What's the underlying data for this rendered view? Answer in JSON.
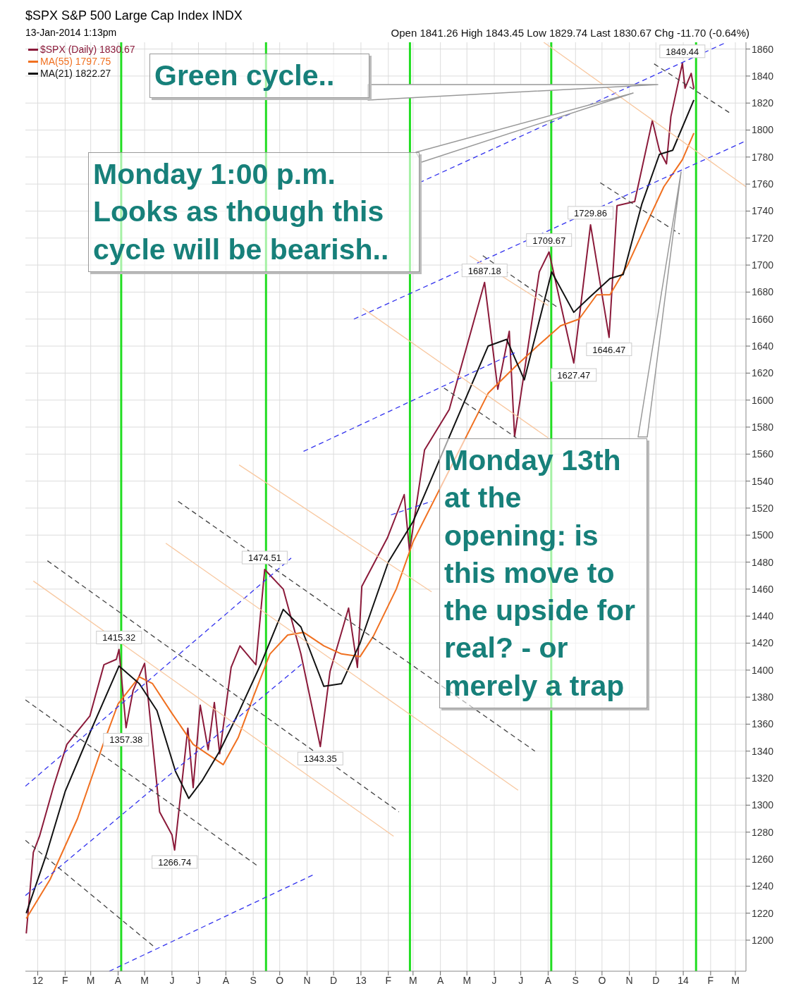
{
  "chart_data": {
    "type": "line",
    "title": "$SPX S&P 500 Large Cap Index INDX",
    "subtitle": "13-Jan-2014 1:13pm",
    "annotations": [
      "Open 1841.26 High 1843.45 Low 1829.74 Last 1830.67 Chg -11.70 (-0.64%)",
      "Green cycle..",
      "Monday 1:00 p.m. Looks as though this cycle will be bearish..",
      "Monday 13th at the opening: is this move to the upside for real? - or merely a trap",
      {
        "text": "1415.32",
        "x": "2012-04-02",
        "y": 1415.32
      },
      {
        "text": "1357.38",
        "x": "2012-04-10",
        "y": 1357.38
      },
      {
        "text": "1266.74",
        "x": "2012-06-04",
        "y": 1266.74
      },
      {
        "text": "1474.51",
        "x": "2012-09-14",
        "y": 1474.51
      },
      {
        "text": "1343.35",
        "x": "2012-11-16",
        "y": 1343.35
      },
      {
        "text": "1687.18",
        "x": "2013-05-21",
        "y": 1687.18
      },
      {
        "text": "1709.67",
        "x": "2013-08-02",
        "y": 1709.67
      },
      {
        "text": "1627.47",
        "x": "2013-08-30",
        "y": 1627.47
      },
      {
        "text": "1729.86",
        "x": "2013-09-18",
        "y": 1729.86
      },
      {
        "text": "1646.47",
        "x": "2013-10-09",
        "y": 1646.47
      },
      {
        "text": "1849.44",
        "x": "2013-12-31",
        "y": 1849.44
      }
    ],
    "xlim": [
      "2011-12-18",
      "2014-03-13"
    ],
    "xticks": [
      {
        "value": "2012-01-01",
        "label": "12"
      },
      {
        "value": "2012-02-01",
        "label": "F"
      },
      {
        "value": "2012-03-01",
        "label": "M"
      },
      {
        "value": "2012-04-01",
        "label": "A"
      },
      {
        "value": "2012-05-01",
        "label": "M"
      },
      {
        "value": "2012-06-01",
        "label": "J"
      },
      {
        "value": "2012-07-01",
        "label": "J"
      },
      {
        "value": "2012-08-01",
        "label": "A"
      },
      {
        "value": "2012-09-01",
        "label": "S"
      },
      {
        "value": "2012-10-01",
        "label": "O"
      },
      {
        "value": "2012-11-01",
        "label": "N"
      },
      {
        "value": "2012-12-01",
        "label": "D"
      },
      {
        "value": "2013-01-01",
        "label": "13"
      },
      {
        "value": "2013-02-01",
        "label": "F"
      },
      {
        "value": "2013-03-01",
        "label": "M"
      },
      {
        "value": "2013-04-01",
        "label": "A"
      },
      {
        "value": "2013-05-01",
        "label": "M"
      },
      {
        "value": "2013-06-01",
        "label": "J"
      },
      {
        "value": "2013-07-01",
        "label": "J"
      },
      {
        "value": "2013-08-01",
        "label": "A"
      },
      {
        "value": "2013-09-01",
        "label": "S"
      },
      {
        "value": "2013-10-01",
        "label": "O"
      },
      {
        "value": "2013-11-01",
        "label": "N"
      },
      {
        "value": "2013-12-01",
        "label": "D"
      },
      {
        "value": "2014-01-01",
        "label": "14"
      },
      {
        "value": "2014-02-01",
        "label": "F"
      },
      {
        "value": "2014-03-01",
        "label": "M"
      }
    ],
    "ylim": [
      1177,
      1865
    ],
    "yticks": [
      1200,
      1220,
      1240,
      1260,
      1280,
      1300,
      1320,
      1340,
      1360,
      1380,
      1400,
      1420,
      1440,
      1460,
      1480,
      1500,
      1520,
      1540,
      1560,
      1580,
      1600,
      1620,
      1640,
      1660,
      1680,
      1700,
      1720,
      1740,
      1760,
      1780,
      1800,
      1820,
      1840,
      1860
    ],
    "grid": true,
    "legend": "top left",
    "marker": "none",
    "line_style": "solid",
    "ref_lines": [
      {
        "axis": "x",
        "value": "2012-04-04T12:00",
        "color": "#22dd22"
      },
      {
        "axis": "x",
        "value": "2012-09-15T12:00",
        "color": "#22dd22"
      },
      {
        "axis": "x",
        "value": "2013-02-25T12:00",
        "color": "#22dd22"
      },
      {
        "axis": "x",
        "value": "2013-08-04T12:00",
        "color": "#22dd22"
      },
      {
        "axis": "x",
        "value": "2014-01-15T12:00",
        "color": "#22dd22"
      }
    ],
    "series": [
      {
        "name": "$SPX (Daily) 1830.67",
        "color": "#8b1a3a",
        "x": [
          "2011-12-19",
          "2011-12-27",
          "2012-01-03",
          "2012-01-19",
          "2012-02-03",
          "2012-02-29",
          "2012-03-16",
          "2012-03-30",
          "2012-04-02",
          "2012-04-10",
          "2012-04-18",
          "2012-05-01",
          "2012-05-18",
          "2012-06-01",
          "2012-06-04",
          "2012-06-19",
          "2012-06-25",
          "2012-07-03",
          "2012-07-12",
          "2012-07-19",
          "2012-07-25",
          "2012-08-07",
          "2012-08-17",
          "2012-09-04",
          "2012-09-14",
          "2012-10-05",
          "2012-10-25",
          "2012-11-16",
          "2012-11-27",
          "2012-12-18",
          "2012-12-28",
          "2013-01-02",
          "2013-01-31",
          "2013-02-19",
          "2013-02-25",
          "2013-03-14",
          "2013-04-11",
          "2013-05-21",
          "2013-06-05",
          "2013-06-18",
          "2013-06-24",
          "2013-07-22",
          "2013-08-02",
          "2013-08-30",
          "2013-09-18",
          "2013-10-09",
          "2013-10-18",
          "2013-11-07",
          "2013-11-27",
          "2013-12-05",
          "2013-12-13",
          "2013-12-18",
          "2013-12-31",
          "2014-01-03",
          "2014-01-10",
          "2014-01-13"
        ],
        "values": [
          1205,
          1265,
          1277,
          1314,
          1345,
          1366,
          1404,
          1408,
          1415.32,
          1357.38,
          1385,
          1405,
          1295,
          1278,
          1266.74,
          1357,
          1313,
          1374,
          1341,
          1376,
          1338,
          1402,
          1418,
          1404,
          1474.51,
          1460,
          1412,
          1343.35,
          1399,
          1446,
          1402,
          1462,
          1498,
          1530,
          1488,
          1563,
          1593,
          1687.18,
          1608,
          1651,
          1573,
          1695,
          1709.67,
          1627.47,
          1729.86,
          1646.47,
          1744,
          1747,
          1807,
          1785,
          1775,
          1810,
          1849.44,
          1831,
          1842,
          1830.67
        ]
      },
      {
        "name": "MA(55) 1797.75",
        "color": "#f07020",
        "x": [
          "2011-12-19",
          "2012-01-15",
          "2012-02-15",
          "2012-03-15",
          "2012-04-01",
          "2012-04-25",
          "2012-05-10",
          "2012-06-01",
          "2012-06-25",
          "2012-07-29",
          "2012-08-15",
          "2012-09-01",
          "2012-09-20",
          "2012-10-10",
          "2012-10-28",
          "2012-11-20",
          "2012-12-10",
          "2012-12-31",
          "2013-01-15",
          "2013-02-10",
          "2013-03-01",
          "2013-05-25",
          "2013-06-25",
          "2013-07-20",
          "2013-08-15",
          "2013-09-05",
          "2013-09-25",
          "2013-10-10",
          "2013-10-30",
          "2013-11-20",
          "2013-12-10",
          "2013-12-31",
          "2014-01-13"
        ],
        "values": [
          1216,
          1245,
          1290,
          1345,
          1375,
          1395,
          1390,
          1368,
          1345,
          1330,
          1350,
          1380,
          1412,
          1426,
          1428,
          1418,
          1412,
          1410,
          1425,
          1460,
          1495,
          1605,
          1625,
          1640,
          1655,
          1660,
          1678,
          1678,
          1700,
          1730,
          1758,
          1778,
          1797.75
        ]
      },
      {
        "name": "MA(21) 1822.27",
        "color": "#111111",
        "x": [
          "2011-12-19",
          "2012-01-10",
          "2012-02-01",
          "2012-03-01",
          "2012-04-02",
          "2012-04-25",
          "2012-05-15",
          "2012-06-05",
          "2012-06-20",
          "2012-07-05",
          "2012-07-25",
          "2012-08-15",
          "2012-09-10",
          "2012-10-05",
          "2012-10-25",
          "2012-11-20",
          "2012-12-10",
          "2012-12-31",
          "2013-02-01",
          "2013-03-01",
          "2013-05-25",
          "2013-06-15",
          "2013-07-05",
          "2013-08-05",
          "2013-08-30",
          "2013-09-15",
          "2013-10-10",
          "2013-10-25",
          "2013-11-15",
          "2013-12-05",
          "2013-12-20",
          "2014-01-13"
        ],
        "values": [
          1220,
          1262,
          1310,
          1355,
          1403,
          1390,
          1370,
          1325,
          1305,
          1318,
          1340,
          1368,
          1405,
          1445,
          1432,
          1388,
          1390,
          1420,
          1480,
          1510,
          1640,
          1645,
          1615,
          1695,
          1665,
          1675,
          1690,
          1693,
          1745,
          1782,
          1785,
          1822.27
        ]
      },
      {
        "color": "#3333ee",
        "line_style": "dashed",
        "x": [
          "2011-12-18",
          "2012-10-14"
        ],
        "values": [
          1314,
          1483
        ]
      },
      {
        "color": "#3333ee",
        "line_style": "dashed",
        "x": [
          "2011-12-18",
          "2012-10-27"
        ],
        "values": [
          1233,
          1405
        ]
      },
      {
        "color": "#3333ee",
        "line_style": "dashed",
        "x": [
          "2012-03-22",
          "2012-11-10"
        ],
        "values": [
          1177,
          1249
        ]
      },
      {
        "color": "#3333ee",
        "line_style": "dashed",
        "x": [
          "2012-10-28",
          "2013-06-24"
        ],
        "values": [
          1562,
          1635
        ]
      },
      {
        "color": "#3333ee",
        "line_style": "dashed",
        "x": [
          "2013-02-04",
          "2013-03-22"
        ],
        "values": [
          1515,
          1525
        ]
      },
      {
        "color": "#3333ee",
        "line_style": "dashed",
        "x": [
          "2012-12-24",
          "2014-03-13"
        ],
        "values": [
          1660,
          1792
        ]
      },
      {
        "color": "#3333ee",
        "line_style": "dashed",
        "x": [
          "2013-03-08",
          "2014-02-19"
        ],
        "values": [
          1761,
          1865
        ]
      },
      {
        "color": "#f8c8a0",
        "x": [
          "2011-12-27",
          "2013-02-07"
        ],
        "values": [
          1466,
          1277
        ]
      },
      {
        "color": "#f8c8a0",
        "x": [
          "2012-05-25",
          "2013-06-28"
        ],
        "values": [
          1494,
          1311
        ]
      },
      {
        "color": "#f8c8a0",
        "x": [
          "2012-08-16",
          "2013-03-22"
        ],
        "values": [
          1552,
          1458
        ]
      },
      {
        "color": "#f8c8a0",
        "x": [
          "2013-01-03",
          "2013-08-01"
        ],
        "values": [
          1668,
          1572
        ]
      },
      {
        "color": "#f8c8a0",
        "x": [
          "2013-07-27",
          "2014-03-13"
        ],
        "values": [
          1865,
          1758
        ]
      },
      {
        "color": "#f8c8a0",
        "x": [
          "2013-05-04",
          "2013-08-01"
        ],
        "values": [
          1707,
          1670
        ]
      },
      {
        "color": "#444444",
        "line_style": "dashed",
        "x": [
          "2012-01-12",
          "2013-02-13"
        ],
        "values": [
          1481,
          1295
        ]
      },
      {
        "color": "#444444",
        "line_style": "dashed",
        "x": [
          "2012-06-08",
          "2013-07-17"
        ],
        "values": [
          1525,
          1340
        ]
      },
      {
        "color": "#444444",
        "line_style": "dashed",
        "x": [
          "2011-12-18",
          "2012-09-06"
        ],
        "values": [
          1378,
          1255
        ]
      },
      {
        "color": "#444444",
        "line_style": "dashed",
        "x": [
          "2011-12-18",
          "2012-05-12"
        ],
        "values": [
          1274,
          1195
        ]
      },
      {
        "color": "#444444",
        "line_style": "dashed",
        "x": [
          "2013-09-29",
          "2013-12-28"
        ],
        "values": [
          1761,
          1723
        ]
      },
      {
        "color": "#444444",
        "line_style": "dashed",
        "x": [
          "2013-05-19",
          "2013-08-11"
        ],
        "values": [
          1707,
          1669
        ]
      },
      {
        "color": "#444444",
        "line_style": "dashed",
        "x": [
          "2013-11-29",
          "2014-02-22"
        ],
        "values": [
          1849,
          1813
        ]
      },
      {
        "color": "#444444",
        "line_style": "dashed",
        "x": [
          "2013-04-05",
          "2013-06-26"
        ],
        "values": [
          1609,
          1572
        ]
      }
    ]
  }
}
